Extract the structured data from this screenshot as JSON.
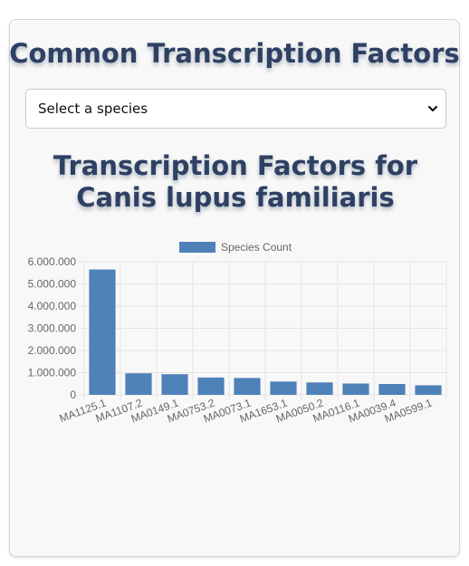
{
  "page": {
    "title": "Common Transcription Factors"
  },
  "species_select": {
    "selected": "Select a species",
    "icon": "chevron-down-icon"
  },
  "chart_data": {
    "type": "bar",
    "title": "Transcription Factors for Canis lupus familiaris",
    "xlabel": "",
    "ylabel": "",
    "ylim": [
      0,
      6000000
    ],
    "y_ticks": [
      "0",
      "1.000.000",
      "2.000.000",
      "3.000.000",
      "4.000.000",
      "5.000.000",
      "6.000.000"
    ],
    "grid": true,
    "legend": "top",
    "categories": [
      "MA1125.1",
      "MA1107.2",
      "MA0149.1",
      "MA0753.2",
      "MA0073.1",
      "MA1653.1",
      "MA0050.2",
      "MA0116.1",
      "MA0039.4",
      "MA0599.1"
    ],
    "series": [
      {
        "name": "Species Count",
        "color": "#4f81b9",
        "values": [
          5650000,
          970000,
          930000,
          780000,
          760000,
          600000,
          560000,
          510000,
          490000,
          430000
        ]
      }
    ]
  }
}
